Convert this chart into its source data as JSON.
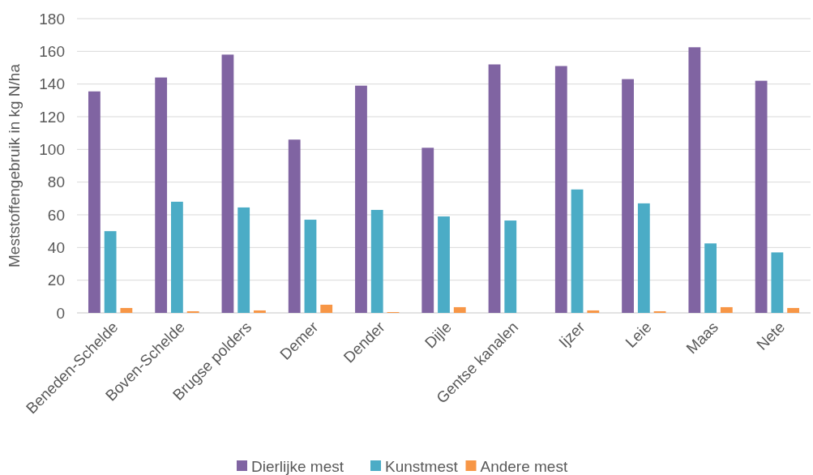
{
  "chart_data": {
    "type": "bar",
    "ylabel": "Meststoffengebruik in kg N/ha",
    "categories": [
      "Beneden-Schelde",
      "Boven-Schelde",
      "Brugse polders",
      "Demer",
      "Dender",
      "Dijle",
      "Gentse kanalen",
      "Ijzer",
      "Leie",
      "Maas",
      "Nete"
    ],
    "series": [
      {
        "name": "Dierlijke mest",
        "color": "#8064a2",
        "values": [
          135.5,
          144,
          158,
          106,
          139,
          101,
          152,
          151,
          143,
          162.5,
          142
        ]
      },
      {
        "name": "Kunstmest",
        "color": "#4bacc6",
        "values": [
          50,
          68,
          64.5,
          57,
          63,
          59,
          56.5,
          75.5,
          67,
          42.5,
          37
        ]
      },
      {
        "name": "Andere mest",
        "color": "#f79646",
        "values": [
          3,
          1,
          1.5,
          5,
          0.5,
          3.5,
          null,
          1.5,
          1,
          3.5,
          3
        ]
      }
    ],
    "ylim": [
      0,
      180
    ],
    "yticks": [
      0,
      20,
      40,
      60,
      80,
      100,
      120,
      140,
      160,
      180
    ],
    "grid": "y",
    "legend": "bottom"
  }
}
